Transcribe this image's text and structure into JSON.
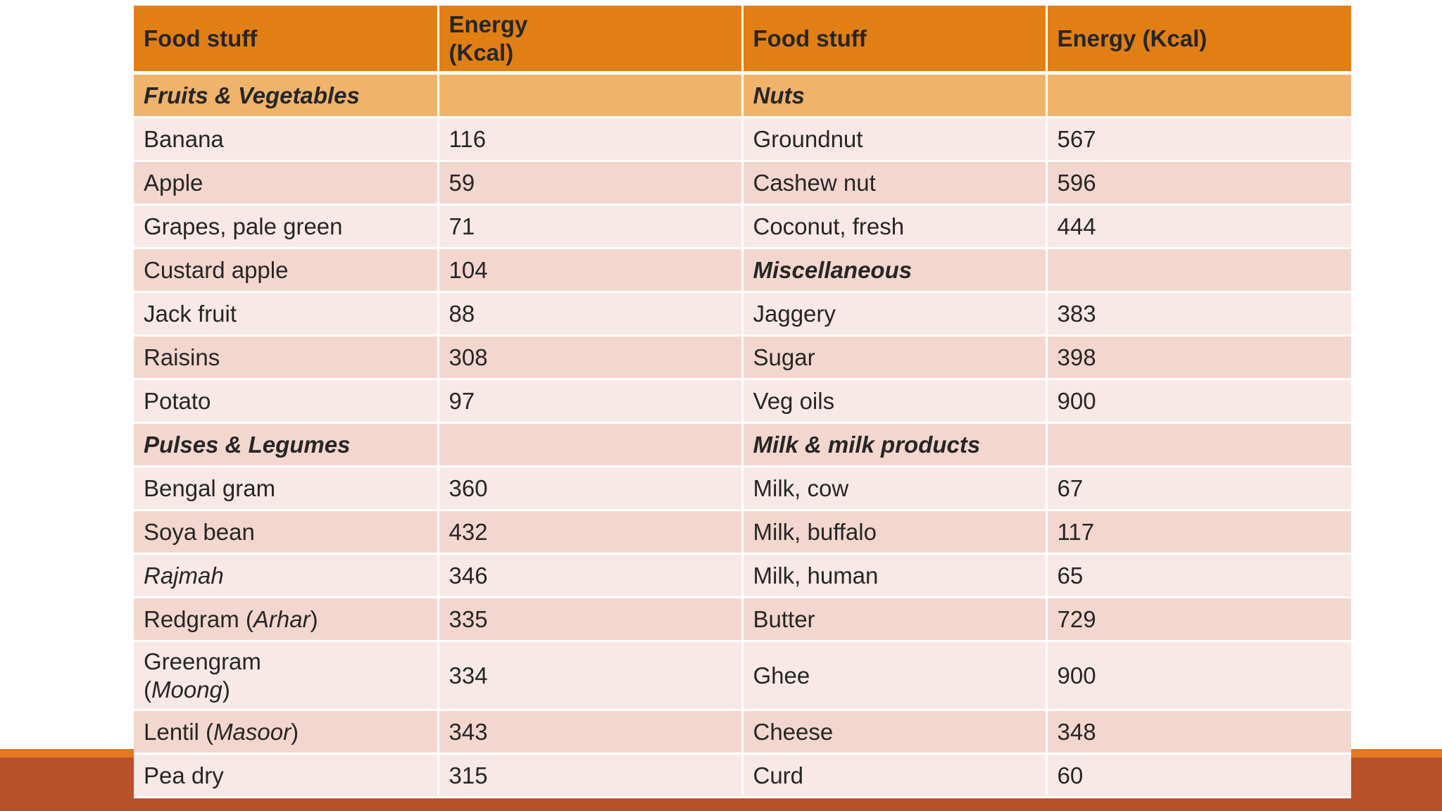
{
  "header": {
    "col1": "Food stuff",
    "col2_line1": "Energy",
    "col2_line2": "(Kcal)",
    "col3": "Food stuff",
    "col4": "Energy (Kcal)"
  },
  "rows": [
    {
      "left": {
        "prefix": "",
        "italic": "",
        "suffix": "",
        "group": "Fruits & Vegetables"
      },
      "left_val": "",
      "right": {
        "prefix": "",
        "italic": "",
        "suffix": "",
        "group": "Nuts"
      },
      "right_val": ""
    },
    {
      "left": {
        "prefix": "Banana",
        "italic": "",
        "suffix": "",
        "group": ""
      },
      "left_val": "116",
      "right": {
        "prefix": "Groundnut",
        "italic": "",
        "suffix": "",
        "group": ""
      },
      "right_val": "567"
    },
    {
      "left": {
        "prefix": "Apple",
        "italic": "",
        "suffix": "",
        "group": ""
      },
      "left_val": "59",
      "right": {
        "prefix": "Cashew nut",
        "italic": "",
        "suffix": "",
        "group": ""
      },
      "right_val": "596"
    },
    {
      "left": {
        "prefix": "Grapes, pale green",
        "italic": "",
        "suffix": "",
        "group": ""
      },
      "left_val": "71",
      "right": {
        "prefix": "Coconut, fresh",
        "italic": "",
        "suffix": "",
        "group": ""
      },
      "right_val": "444"
    },
    {
      "left": {
        "prefix": "Custard apple",
        "italic": "",
        "suffix": "",
        "group": ""
      },
      "left_val": "104",
      "right": {
        "prefix": "",
        "italic": "",
        "suffix": "",
        "group": "Miscellaneous"
      },
      "right_val": ""
    },
    {
      "left": {
        "prefix": "Jack fruit",
        "italic": "",
        "suffix": "",
        "group": ""
      },
      "left_val": "88",
      "right": {
        "prefix": "Jaggery",
        "italic": "",
        "suffix": "",
        "group": ""
      },
      "right_val": "383"
    },
    {
      "left": {
        "prefix": "Raisins",
        "italic": "",
        "suffix": "",
        "group": ""
      },
      "left_val": "308",
      "right": {
        "prefix": "Sugar",
        "italic": "",
        "suffix": "",
        "group": ""
      },
      "right_val": "398"
    },
    {
      "left": {
        "prefix": "Potato",
        "italic": "",
        "suffix": "",
        "group": ""
      },
      "left_val": "97",
      "right": {
        "prefix": "Veg oils",
        "italic": "",
        "suffix": "",
        "group": ""
      },
      "right_val": "900"
    },
    {
      "left": {
        "prefix": "",
        "italic": "",
        "suffix": "",
        "group": "Pulses & Legumes"
      },
      "left_val": "",
      "right": {
        "prefix": "",
        "italic": "",
        "suffix": "",
        "group": "Milk & milk products"
      },
      "right_val": ""
    },
    {
      "left": {
        "prefix": "Bengal gram",
        "italic": "",
        "suffix": "",
        "group": ""
      },
      "left_val": "360",
      "right": {
        "prefix": "Milk, cow",
        "italic": "",
        "suffix": "",
        "group": ""
      },
      "right_val": "67"
    },
    {
      "left": {
        "prefix": "Soya bean",
        "italic": "",
        "suffix": "",
        "group": ""
      },
      "left_val": "432",
      "right": {
        "prefix": "Milk, buffalo",
        "italic": "",
        "suffix": "",
        "group": ""
      },
      "right_val": "117"
    },
    {
      "left": {
        "prefix": "",
        "italic": "Rajmah",
        "suffix": "",
        "group": ""
      },
      "left_val": "346",
      "right": {
        "prefix": "Milk, human",
        "italic": "",
        "suffix": "",
        "group": ""
      },
      "right_val": "65"
    },
    {
      "left": {
        "prefix": "Redgram (",
        "italic": "Arhar",
        "suffix": ")",
        "group": ""
      },
      "left_val": "335",
      "right": {
        "prefix": "Butter",
        "italic": "",
        "suffix": "",
        "group": ""
      },
      "right_val": "729"
    },
    {
      "left": {
        "prefix": "Greengram (",
        "italic": "Moong",
        "suffix": ")",
        "group": ""
      },
      "left_val": "334",
      "right": {
        "prefix": "Ghee",
        "italic": "",
        "suffix": "",
        "group": ""
      },
      "right_val": "900"
    },
    {
      "left": {
        "prefix": "Lentil (",
        "italic": "Masoor",
        "suffix": ")",
        "group": ""
      },
      "left_val": "343",
      "right": {
        "prefix": "Cheese",
        "italic": "",
        "suffix": "",
        "group": ""
      },
      "right_val": "348"
    },
    {
      "left": {
        "prefix": "Pea dry",
        "italic": "",
        "suffix": "",
        "group": ""
      },
      "left_val": "315",
      "right": {
        "prefix": "Curd",
        "italic": "",
        "suffix": "",
        "group": ""
      },
      "right_val": "60"
    }
  ]
}
